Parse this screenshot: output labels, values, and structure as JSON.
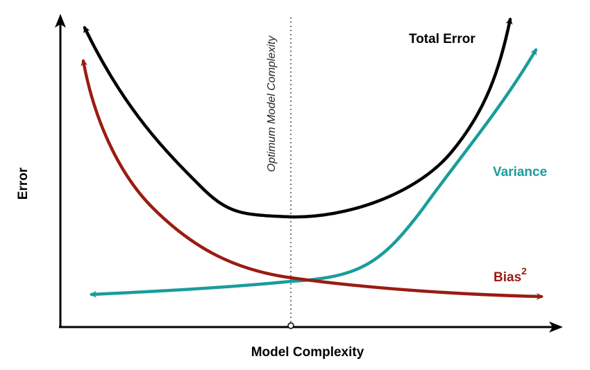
{
  "xlabel": "Model Complexity",
  "ylabel": "Error",
  "optimum_label": "Optimum Model Complexity",
  "curves": {
    "total": {
      "label": "Total Error",
      "color": "#000000"
    },
    "variance": {
      "label": "Variance",
      "color": "#1a9c9c"
    },
    "bias": {
      "label": "Bias",
      "superscript": "2",
      "color": "#9a1c12"
    }
  },
  "axis_color": "#000000",
  "guide_color": "#555555"
}
